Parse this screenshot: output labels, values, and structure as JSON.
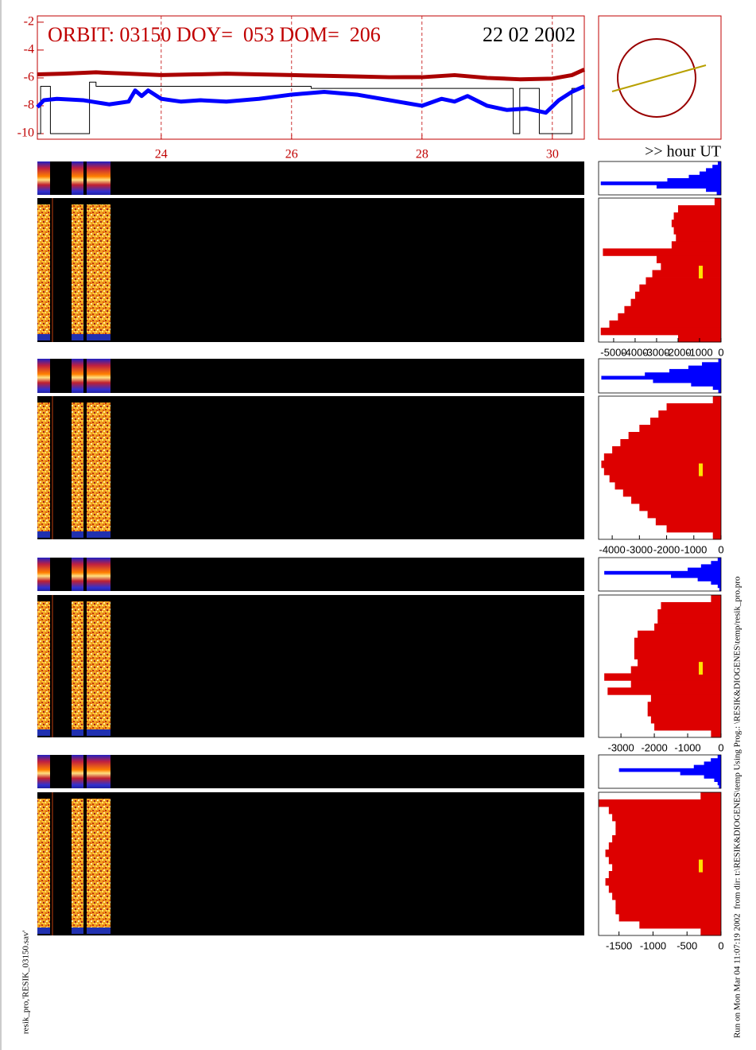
{
  "chart_data": [
    {
      "type": "line",
      "title": "ORBIT: 03150 DOY=  053 DOM=  206",
      "date": "22 02 2002",
      "x_label": ">> hour UT",
      "notes": [
        "resik_pro,'RESIK_03150.sav'",
        "Run on Mon Mar 04 11:07:19 2002  from dir: t:\\RESIK&DIOGENES\\temp Using Prog.: \\RESIK&DIOGENES\\temp/resik_pro.pro"
      ],
      "xlim": [
        22.1,
        30.49
      ],
      "xticks": [
        24,
        26,
        28,
        30
      ],
      "ylim": [
        -10.4,
        -1.55
      ],
      "yticks": [
        -10,
        -8,
        -6,
        -4,
        -2
      ],
      "grid": true,
      "series": [
        {
          "color": "#aa0000",
          "width": 5,
          "x": [
            22.1,
            22.5,
            23.0,
            23.5,
            24.0,
            24.5,
            25.0,
            25.5,
            26.0,
            26.5,
            27.0,
            27.5,
            28.0,
            28.5,
            29.0,
            29.5,
            30.0,
            30.3,
            30.49
          ],
          "values": [
            -5.75,
            -5.7,
            -5.6,
            -5.7,
            -5.8,
            -5.75,
            -5.7,
            -5.75,
            -5.8,
            -5.85,
            -5.9,
            -5.95,
            -5.95,
            -5.8,
            -6.0,
            -6.1,
            -6.05,
            -5.8,
            -5.4
          ]
        },
        {
          "color": "#0000ff",
          "width": 5,
          "x": [
            22.1,
            22.2,
            22.4,
            22.8,
            23.2,
            23.5,
            23.6,
            23.7,
            23.8,
            24.0,
            24.3,
            24.6,
            25.0,
            25.5,
            26.0,
            26.5,
            27.0,
            27.5,
            28.0,
            28.3,
            28.5,
            28.7,
            29.0,
            29.3,
            29.6,
            29.9,
            30.1,
            30.3,
            30.49
          ],
          "values": [
            -8.1,
            -7.6,
            -7.5,
            -7.6,
            -7.9,
            -7.7,
            -6.9,
            -7.3,
            -6.9,
            -7.5,
            -7.7,
            -7.6,
            -7.7,
            -7.5,
            -7.2,
            -7.0,
            -7.2,
            -7.6,
            -8.0,
            -7.5,
            -7.7,
            -7.3,
            -8.0,
            -8.3,
            -8.2,
            -8.5,
            -7.6,
            -7.0,
            -6.6
          ]
        },
        {
          "color": "#000000",
          "width": 1,
          "x": [
            22.1,
            22.15,
            22.15,
            22.3,
            22.3,
            22.9,
            22.9,
            23.0,
            23.0,
            26.3,
            26.3,
            29.4,
            29.4,
            29.5,
            29.5,
            29.8,
            29.8,
            30.3,
            30.3,
            30.49
          ],
          "values": [
            -10,
            -10,
            -6.6,
            -6.6,
            -10,
            -10,
            -6.3,
            -6.3,
            -6.6,
            -6.6,
            -6.75,
            -6.75,
            -10,
            -10,
            -6.75,
            -6.75,
            -10,
            -10,
            -6.75,
            -6.75
          ]
        }
      ]
    },
    {
      "type": "hbar",
      "xlim": [
        -5700,
        0
      ],
      "xticks": [
        -5000,
        -4000,
        -3000,
        -2000,
        -1000,
        0
      ],
      "series": [
        {
          "color": "#0000ff",
          "values": [
            -150,
            -400,
            -700,
            -1000,
            -1500,
            -2500,
            -5600,
            -3000,
            -700,
            -200
          ]
        },
        {
          "color": "#dd0000",
          "values": [
            -300,
            -2000,
            -2200,
            -2300,
            -2200,
            -2100,
            -2300,
            -5500,
            -3000,
            -2800,
            -3200,
            -3500,
            -3800,
            -4000,
            -4200,
            -4500,
            -4800,
            -5200,
            -5600,
            -2000
          ]
        }
      ]
    },
    {
      "type": "hbar",
      "xlim": [
        -4500,
        0
      ],
      "xticks": [
        -4000,
        -3000,
        -2000,
        -1000,
        0
      ],
      "series": [
        {
          "color": "#0000ff",
          "values": [
            -100,
            -700,
            -1200,
            -1900,
            -2800,
            -4400,
            -2500,
            -1100,
            -300,
            -100
          ]
        },
        {
          "color": "#dd0000",
          "values": [
            -300,
            -2000,
            -2300,
            -2600,
            -3000,
            -3400,
            -3700,
            -4000,
            -4300,
            -4400,
            -4300,
            -4100,
            -3900,
            -3600,
            -3300,
            -3000,
            -2700,
            -2400,
            -2000,
            -300
          ]
        }
      ]
    },
    {
      "type": "hbar",
      "xlim": [
        -3670,
        0
      ],
      "xticks": [
        -3000,
        -2000,
        -1000,
        0
      ],
      "series": [
        {
          "color": "#0000ff",
          "values": [
            -100,
            -300,
            -600,
            -1000,
            -3500,
            -1500,
            -700,
            -300,
            -100,
            -50
          ]
        },
        {
          "color": "#dd0000",
          "values": [
            -300,
            -1800,
            -1900,
            -1900,
            -2000,
            -2500,
            -2600,
            -2600,
            -2600,
            -2500,
            -2700,
            -3500,
            -2700,
            -3400,
            -2100,
            -2200,
            -2200,
            -2100,
            -2000,
            -300
          ]
        }
      ]
    },
    {
      "type": "hbar",
      "xlim": [
        -1800,
        0
      ],
      "xticks": [
        -1500,
        -1000,
        -500,
        0
      ],
      "series": [
        {
          "color": "#0000ff",
          "values": [
            -50,
            -150,
            -250,
            -400,
            -1500,
            -600,
            -250,
            -100,
            -50,
            -30
          ]
        },
        {
          "color": "#dd0000",
          "values": [
            -300,
            -1800,
            -1650,
            -1600,
            -1550,
            -1550,
            -1600,
            -1650,
            -1700,
            -1650,
            -1600,
            -1650,
            -1700,
            -1650,
            -1600,
            -1550,
            -1550,
            -1500,
            -1200,
            -300
          ]
        }
      ]
    }
  ]
}
